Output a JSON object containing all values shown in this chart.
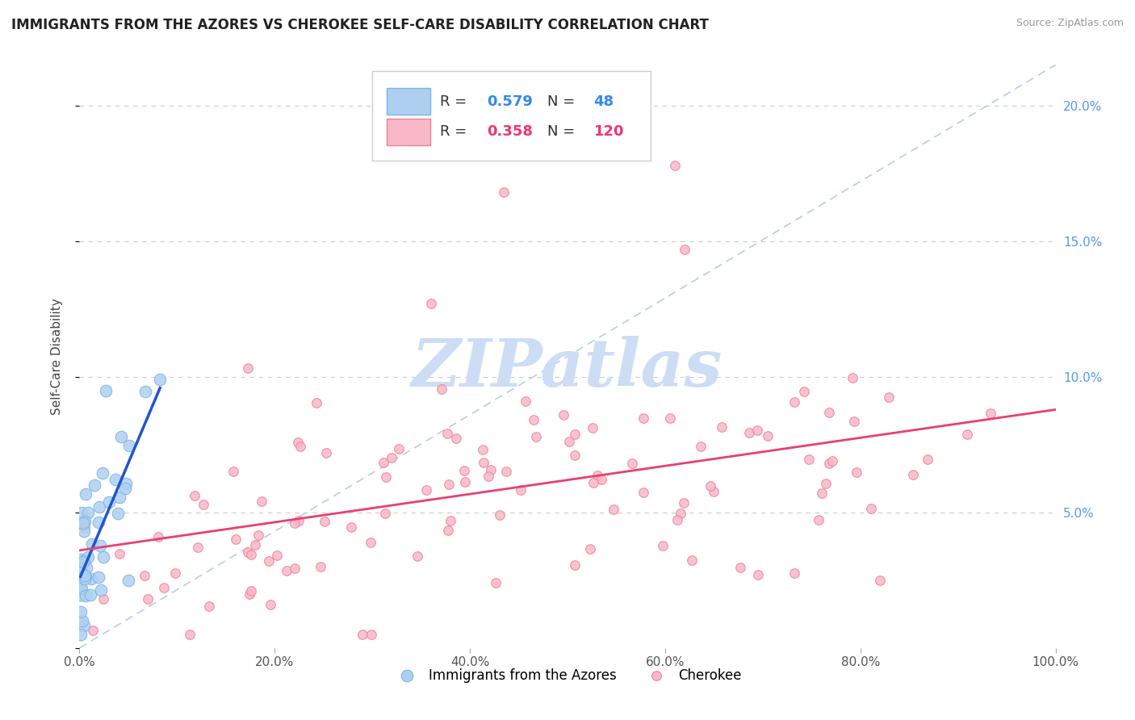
{
  "title": "IMMIGRANTS FROM THE AZORES VS CHEROKEE SELF-CARE DISABILITY CORRELATION CHART",
  "source": "Source: ZipAtlas.com",
  "ylabel": "Self-Care Disability",
  "xlim": [
    0,
    1.0
  ],
  "ylim": [
    0,
    0.215
  ],
  "xticks": [
    0.0,
    0.2,
    0.4,
    0.6,
    0.8,
    1.0
  ],
  "yticks": [
    0.0,
    0.05,
    0.1,
    0.15,
    0.2
  ],
  "xticklabels": [
    "0.0%",
    "20.0%",
    "40.0%",
    "60.0%",
    "80.0%",
    "100.0%"
  ],
  "yticklabels_right": [
    "",
    "5.0%",
    "10.0%",
    "15.0%",
    "20.0%"
  ],
  "azores_color": "#7ab3e8",
  "azores_color_fill": "#aed0f0",
  "cherokee_color": "#f08090",
  "cherokee_color_fill": "#f8b8c8",
  "azores_trend_color": "#2255cc",
  "cherokee_trend_color": "#e84070",
  "diagonal_color": "#b8cce8",
  "legend_r_azores": "0.579",
  "legend_n_azores": "48",
  "legend_r_cherokee": "0.358",
  "legend_n_cherokee": "120",
  "legend_label_azores": "Immigrants from the Azores",
  "legend_label_cherokee": "Cherokee",
  "watermark": "ZIPatlas",
  "watermark_color": "#ccddf5",
  "background_color": "#ffffff",
  "grid_color": "#cccccc",
  "tick_color": "#5599ee",
  "azores_marker_size": 110,
  "cherokee_marker_size": 70
}
